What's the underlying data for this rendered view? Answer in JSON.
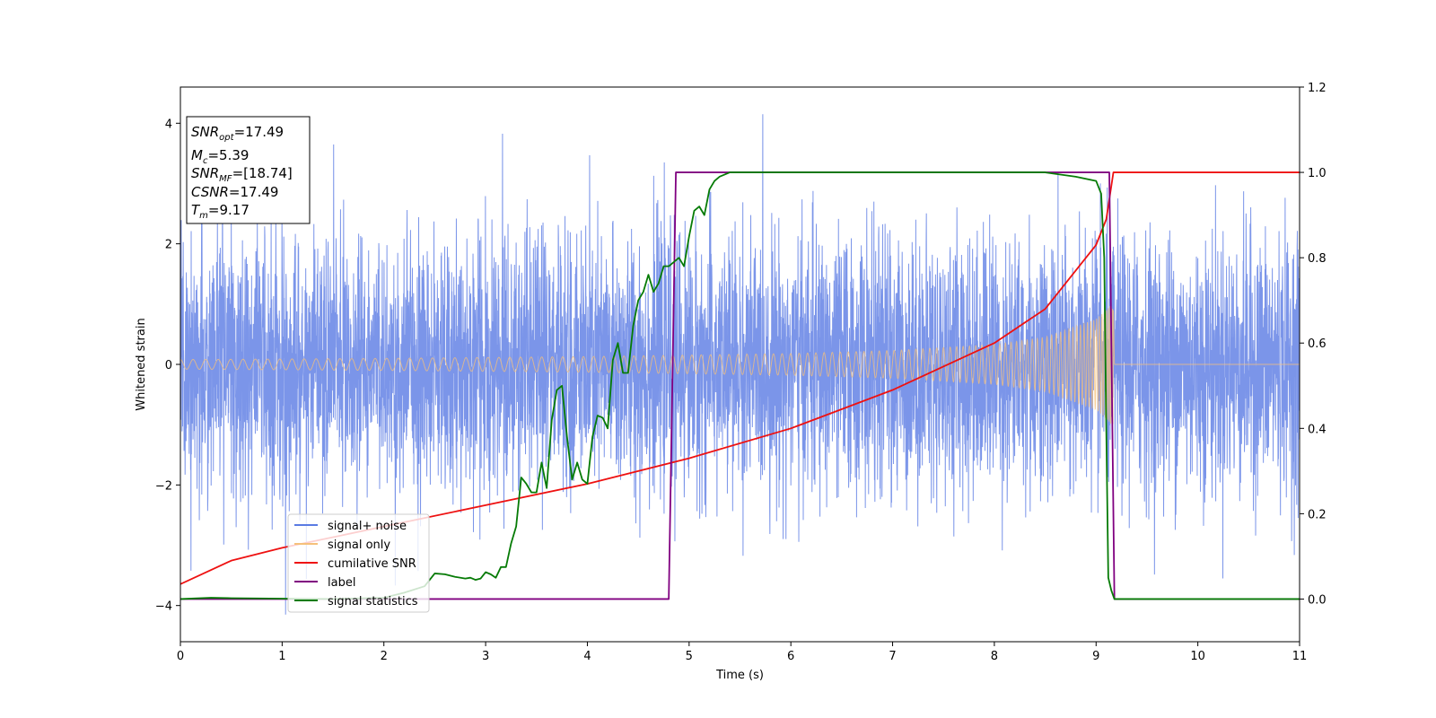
{
  "chart_data": {
    "type": "line",
    "xlabel": "Time (s)",
    "ylabel": "Whitened strain",
    "xlim": [
      0,
      11
    ],
    "ylim": [
      -4.6,
      4.6
    ],
    "y2lim": [
      -0.1,
      1.2
    ],
    "x_ticks": [
      "0",
      "1",
      "2",
      "3",
      "4",
      "5",
      "6",
      "7",
      "8",
      "9",
      "10",
      "11"
    ],
    "y_ticks": [
      "4",
      "2",
      "0",
      "−2",
      "−4"
    ],
    "y2_ticks": [
      "1.2",
      "1.0",
      "0.8",
      "0.6",
      "0.4",
      "0.2",
      "0.0"
    ],
    "grid": false,
    "legend_position": "lower-left",
    "annotation": {
      "snr_opt": {
        "base": "SNR",
        "sub": "opt",
        "value": "=17.49"
      },
      "mc": {
        "base": "M",
        "sub": "c",
        "value": "=5.39"
      },
      "snr_mf": {
        "base": "SNR",
        "sub": "MF",
        "value": "=[18.74]"
      },
      "csnr": {
        "base": "CSNR",
        "sub": "",
        "value": "=17.49"
      },
      "tm": {
        "base": "T",
        "sub": "m",
        "value": "=9.17"
      }
    },
    "series": [
      {
        "name": "signal+ noise",
        "color": "#5a7be3",
        "axis": "left",
        "description_values": {
          "noise_sigma": 1.05,
          "peak_max": 4.15
        }
      },
      {
        "name": "signal only",
        "color": "#f5c07a",
        "axis": "left",
        "envelope": {
          "x": [
            0,
            2,
            4,
            6,
            7,
            8,
            8.5,
            9,
            9.1,
            9.15,
            9.17,
            9.18,
            11
          ],
          "amp": [
            0.08,
            0.1,
            0.13,
            0.18,
            0.23,
            0.33,
            0.45,
            0.75,
            0.9,
            1.0,
            1.0,
            0.0,
            0.0
          ]
        }
      },
      {
        "name": "cumilative SNR",
        "color": "#ee1111",
        "axis": "right",
        "x": [
          0,
          0.5,
          1,
          2,
          3,
          4,
          5,
          6,
          7,
          8,
          8.5,
          9,
          9.1,
          9.17,
          9.18,
          11
        ],
        "y": [
          0.035,
          0.09,
          0.12,
          0.17,
          0.22,
          0.27,
          0.33,
          0.4,
          0.49,
          0.6,
          0.68,
          0.83,
          0.89,
          1.0,
          1.0,
          1.0
        ]
      },
      {
        "name": "label",
        "color": "#800080",
        "axis": "right",
        "x": [
          0,
          4.8,
          4.87,
          9.13,
          9.18,
          11
        ],
        "y": [
          0,
          0,
          1,
          1,
          0,
          0
        ]
      },
      {
        "name": "signal statistics",
        "color": "#067b06",
        "axis": "right",
        "x": [
          0,
          0.3,
          0.5,
          1,
          1.5,
          2,
          2.2,
          2.4,
          2.5,
          2.6,
          2.7,
          2.8,
          2.85,
          2.9,
          2.95,
          3.0,
          3.05,
          3.1,
          3.15,
          3.2,
          3.25,
          3.3,
          3.35,
          3.4,
          3.45,
          3.5,
          3.55,
          3.6,
          3.65,
          3.7,
          3.75,
          3.8,
          3.85,
          3.9,
          3.95,
          4.0,
          4.05,
          4.1,
          4.15,
          4.2,
          4.25,
          4.3,
          4.35,
          4.4,
          4.45,
          4.5,
          4.55,
          4.6,
          4.65,
          4.7,
          4.75,
          4.8,
          4.85,
          4.9,
          4.95,
          5.0,
          5.05,
          5.1,
          5.15,
          5.2,
          5.25,
          5.3,
          5.4,
          5.5,
          5.7,
          6,
          7,
          8,
          8.5,
          8.8,
          9.0,
          9.05,
          9.08,
          9.1,
          9.12,
          9.15,
          9.18,
          9.22,
          10,
          11
        ],
        "y": [
          0.0,
          0.003,
          0.002,
          0.001,
          0.0,
          0.003,
          0.015,
          0.03,
          0.06,
          0.058,
          0.052,
          0.048,
          0.05,
          0.045,
          0.048,
          0.063,
          0.058,
          0.05,
          0.075,
          0.075,
          0.13,
          0.17,
          0.285,
          0.27,
          0.25,
          0.25,
          0.32,
          0.26,
          0.42,
          0.49,
          0.5,
          0.38,
          0.28,
          0.32,
          0.28,
          0.27,
          0.38,
          0.43,
          0.425,
          0.4,
          0.56,
          0.6,
          0.53,
          0.53,
          0.64,
          0.7,
          0.72,
          0.76,
          0.72,
          0.74,
          0.78,
          0.78,
          0.79,
          0.8,
          0.78,
          0.85,
          0.91,
          0.92,
          0.9,
          0.96,
          0.98,
          0.99,
          1.0,
          1.0,
          1.0,
          1.0,
          1.0,
          1.0,
          1.0,
          0.99,
          0.98,
          0.95,
          0.8,
          0.4,
          0.05,
          0.02,
          0.0,
          0.0,
          0.0,
          0.0
        ]
      }
    ]
  }
}
